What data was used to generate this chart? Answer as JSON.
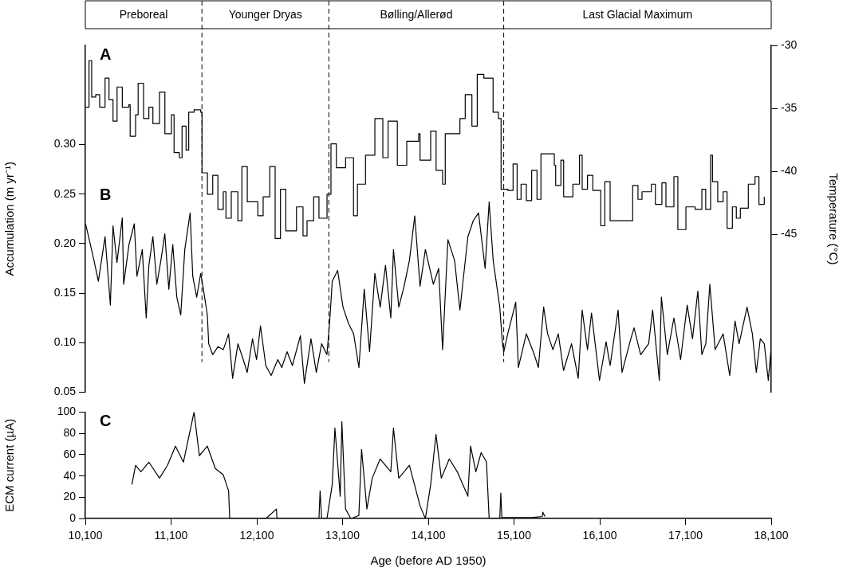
{
  "chart_data": [
    {
      "type": "line",
      "xlim": [
        10100,
        18100
      ],
      "ylim": [
        0.05,
        0.4
      ],
      "yticks": [
        {
          "value": 0.05,
          "label": "0.05"
        },
        {
          "value": 0.1,
          "label": "0.10"
        },
        {
          "value": 0.15,
          "label": "0.15"
        },
        {
          "value": 0.2,
          "label": "0.20"
        },
        {
          "value": 0.25,
          "label": "0.25"
        },
        {
          "value": 0.3,
          "label": "0.30"
        }
      ],
      "y2lim": [
        -57.5,
        -30
      ],
      "y2ticks": [
        -30,
        -35,
        -40,
        -45
      ],
      "ylabel": "Accumulation (m yr⁻¹)",
      "y2label": "Temperature (°C)",
      "tick_labels": "y",
      "marker": "none",
      "annotations": [
        "Preboreal",
        "Younger Dryas",
        "Bølling/Allerød",
        "Last Glacial Maximum",
        "A",
        "B"
      ],
      "ref_lines": [
        {
          "axis": "x",
          "value": 11460,
          "line_style": "dashed"
        },
        {
          "axis": "x",
          "value": 12940,
          "line_style": "dashed"
        },
        {
          "axis": "x",
          "value": 14980,
          "line_style": "dashed"
        }
      ],
      "series": [
        {
          "type": "step",
          "axis": "y2",
          "color": "#000000",
          "x": [
            10103,
            10143,
            10174,
            10221,
            10267,
            10330,
            10376,
            10423,
            10470,
            10531,
            10608,
            10623,
            10686,
            10716,
            10779,
            10841,
            10888,
            10965,
            11028,
            11104,
            11135,
            11197,
            11228,
            11275,
            11306,
            11368,
            11446,
            11461,
            11524,
            11586,
            11646,
            11709,
            11740,
            11802,
            11879,
            11926,
            11989,
            12112,
            12174,
            12251,
            12314,
            12376,
            12438,
            12563,
            12639,
            12686,
            12763,
            12825,
            12919,
            12965,
            13028,
            13136,
            13228,
            13274,
            13368,
            13477,
            13570,
            13631,
            13739,
            13849,
            13988,
            14004,
            14128,
            14191,
            14267,
            14298,
            14407,
            14469,
            14531,
            14609,
            14671,
            14748,
            14856,
            14918,
            14949,
            15028,
            15089,
            15136,
            15182,
            15244,
            15306,
            15368,
            15414,
            15570,
            15586,
            15647,
            15679,
            15787,
            15864,
            15895,
            15957,
            16019,
            16112,
            16159,
            16221,
            16392,
            16484,
            16546,
            16593,
            16702,
            16749,
            16825,
            16872,
            16965,
            17011,
            17105,
            17213,
            17291,
            17336,
            17393,
            17415,
            17476,
            17539,
            17585,
            17647,
            17693,
            17740,
            17833,
            17911,
            17957,
            18019
          ],
          "values": [
            -34.9,
            -31.2,
            -34.1,
            -33.9,
            -34.9,
            -32.6,
            -34.3,
            -36.0,
            -33.3,
            -34.9,
            -34.7,
            -37.2,
            -35.5,
            -33.0,
            -35.8,
            -34.9,
            -36.2,
            -33.7,
            -37.0,
            -35.5,
            -38.5,
            -38.9,
            -36.4,
            -38.3,
            -35.3,
            -35.1,
            -35.3,
            -40.1,
            -41.8,
            -40.3,
            -43.0,
            -41.6,
            -43.7,
            -41.6,
            -43.9,
            -39.6,
            -42.4,
            -43.5,
            -42.0,
            -39.6,
            -45.3,
            -41.4,
            -44.7,
            -42.8,
            -45.1,
            -43.9,
            -42.0,
            -43.7,
            -41.8,
            -37.8,
            -39.7,
            -38.9,
            -43.5,
            -41.0,
            -38.7,
            -35.8,
            -38.9,
            -36.0,
            -39.5,
            -37.6,
            -37.0,
            -39.1,
            -36.8,
            -39.9,
            -41.0,
            -37.0,
            -37.0,
            -35.8,
            -33.9,
            -36.4,
            -32.3,
            -32.6,
            -35.3,
            -35.8,
            -41.4,
            -41.5,
            -39.4,
            -42.2,
            -41.0,
            -42.3,
            -39.9,
            -42.2,
            -38.6,
            -39.5,
            -41.1,
            -39.1,
            -42.0,
            -41.0,
            -38.7,
            -41.4,
            -40.3,
            -41.5,
            -44.3,
            -40.8,
            -43.9,
            -43.9,
            -41.1,
            -42.2,
            -41.6,
            -41.0,
            -42.6,
            -40.9,
            -42.8,
            -40.4,
            -44.6,
            -42.8,
            -43.0,
            -41.4,
            -43.0,
            -38.7,
            -40.8,
            -42.4,
            -41.6,
            -44.5,
            -42.8,
            -43.7,
            -42.9,
            -41.0,
            -40.4,
            -42.6,
            -42.0
          ]
        },
        {
          "type": "line",
          "color": "#000000",
          "x": [
            10103,
            10159,
            10206,
            10252,
            10330,
            10392,
            10423,
            10469,
            10531,
            10547,
            10609,
            10671,
            10702,
            10764,
            10810,
            10841,
            10888,
            10934,
            10981,
            11027,
            11074,
            11120,
            11167,
            11213,
            11260,
            11322,
            11353,
            11399,
            11446,
            11477,
            11523,
            11539,
            11585,
            11647,
            11709,
            11771,
            11818,
            11880,
            11942,
            11988,
            12050,
            12097,
            12143,
            12205,
            12267,
            12345,
            12391,
            12453,
            12515,
            12608,
            12655,
            12732,
            12794,
            12856,
            12918,
            12949,
            12980,
            13043,
            13105,
            13167,
            13229,
            13291,
            13353,
            13415,
            13477,
            13539,
            13601,
            13663,
            13694,
            13756,
            13818,
            13880,
            13942,
            14004,
            14066,
            14159,
            14221,
            14267,
            14329,
            14407,
            14469,
            14562,
            14624,
            14686,
            14763,
            14810,
            14857,
            14934,
            14965,
            14981,
            15027,
            15120,
            15151,
            15244,
            15337,
            15384,
            15446,
            15492,
            15554,
            15616,
            15678,
            15771,
            15849,
            15895,
            15957,
            16004,
            16097,
            16174,
            16221,
            16314,
            16360,
            16453,
            16500,
            16577,
            16670,
            16717,
            16795,
            16819,
            16888,
            16965,
            17043,
            17120,
            17182,
            17244,
            17291,
            17337,
            17384,
            17446,
            17539,
            17616,
            17678,
            17725,
            17818,
            17880,
            17926,
            17973,
            18019,
            18066,
            18097
          ],
          "values": [
            0.22,
            0.199,
            0.181,
            0.162,
            0.207,
            0.138,
            0.218,
            0.181,
            0.226,
            0.159,
            0.199,
            0.22,
            0.167,
            0.194,
            0.125,
            0.178,
            0.207,
            0.159,
            0.183,
            0.21,
            0.154,
            0.199,
            0.146,
            0.128,
            0.194,
            0.231,
            0.167,
            0.146,
            0.17,
            0.154,
            0.128,
            0.099,
            0.088,
            0.096,
            0.093,
            0.109,
            0.064,
            0.099,
            0.083,
            0.07,
            0.104,
            0.083,
            0.117,
            0.077,
            0.067,
            0.083,
            0.075,
            0.091,
            0.077,
            0.107,
            0.059,
            0.104,
            0.07,
            0.099,
            0.088,
            0.12,
            0.162,
            0.173,
            0.136,
            0.12,
            0.109,
            0.075,
            0.154,
            0.091,
            0.17,
            0.136,
            0.178,
            0.125,
            0.194,
            0.136,
            0.157,
            0.183,
            0.228,
            0.157,
            0.194,
            0.159,
            0.175,
            0.093,
            0.204,
            0.183,
            0.133,
            0.207,
            0.223,
            0.231,
            0.175,
            0.242,
            0.183,
            0.136,
            0.099,
            0.091,
            0.109,
            0.141,
            0.075,
            0.109,
            0.088,
            0.075,
            0.136,
            0.109,
            0.093,
            0.109,
            0.072,
            0.099,
            0.064,
            0.133,
            0.093,
            0.13,
            0.062,
            0.101,
            0.077,
            0.133,
            0.07,
            0.101,
            0.115,
            0.088,
            0.099,
            0.133,
            0.062,
            0.146,
            0.088,
            0.125,
            0.083,
            0.138,
            0.104,
            0.152,
            0.088,
            0.099,
            0.159,
            0.093,
            0.109,
            0.067,
            0.122,
            0.099,
            0.136,
            0.109,
            0.07,
            0.104,
            0.099,
            0.062,
            0.093
          ]
        }
      ]
    },
    {
      "type": "line",
      "xlim": [
        10100,
        18100
      ],
      "xticks": [
        {
          "value": 10100,
          "label": "10,100"
        },
        {
          "value": 11100,
          "label": "11,100"
        },
        {
          "value": 12100,
          "label": "12,100"
        },
        {
          "value": 13100,
          "label": "13,100"
        },
        {
          "value": 14100,
          "label": "14,100"
        },
        {
          "value": 15100,
          "label": "15,100"
        },
        {
          "value": 16100,
          "label": "16,100"
        },
        {
          "value": 17100,
          "label": "17,100"
        },
        {
          "value": 18100,
          "label": "18,100"
        }
      ],
      "ylim": [
        0,
        100
      ],
      "yticks": [
        0,
        20,
        40,
        60,
        80,
        100
      ],
      "xlabel": "Age (before AD 1950)",
      "ylabel": "ECM current (µA)",
      "marker": "none",
      "annotations": [
        "C"
      ],
      "series": [
        {
          "type": "line",
          "color": "#000000",
          "x": [
            10643,
            10686,
            10748,
            10841,
            10965,
            11058,
            11151,
            11244,
            11368,
            11430,
            11523,
            11616,
            11709,
            11771,
            11784,
            11895,
            12205,
            12329,
            12335,
            12577,
            12825,
            12838,
            12856,
            12918,
            12980,
            13011,
            13073,
            13092,
            13135,
            13197,
            13290,
            13322,
            13384,
            13446,
            13539,
            13663,
            13694,
            13756,
            13880,
            14004,
            14066,
            14128,
            14190,
            14252,
            14345,
            14438,
            14562,
            14593,
            14655,
            14717,
            14779,
            14810,
            14934,
            14946,
            14958,
            15306,
            15430,
            15436,
            15461
          ],
          "values": [
            32,
            50,
            44,
            53,
            38,
            50,
            68,
            53,
            100,
            59,
            68,
            47,
            41,
            26,
            0,
            0,
            0,
            9,
            0,
            0,
            0,
            26,
            0,
            0,
            32,
            85,
            21,
            91,
            9,
            0,
            3,
            65,
            9,
            38,
            56,
            44,
            85,
            38,
            50,
            12,
            0,
            32,
            79,
            38,
            56,
            44,
            21,
            68,
            44,
            62,
            53,
            0,
            0,
            24,
            1,
            1,
            2,
            6,
            2
          ]
        }
      ]
    }
  ]
}
